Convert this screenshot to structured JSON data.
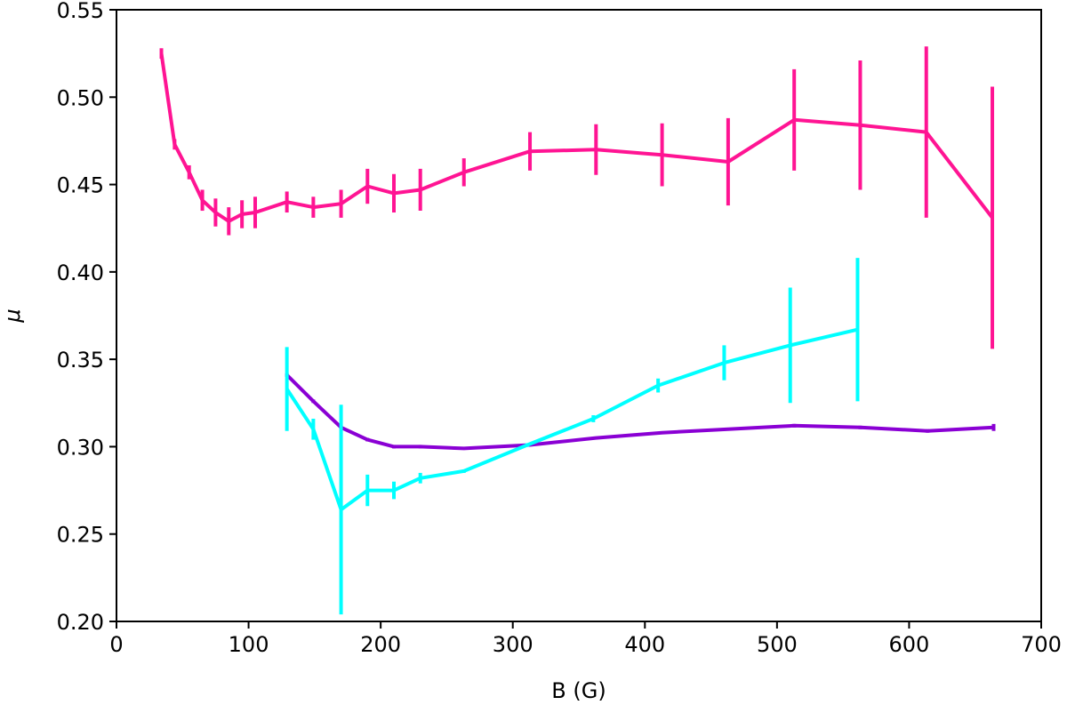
{
  "chart_data": {
    "type": "line",
    "title": "",
    "xlabel": "B (G)",
    "ylabel": "μ",
    "xlim": [
      0,
      700
    ],
    "ylim": [
      0.2,
      0.55
    ],
    "xticks": [
      0,
      100,
      200,
      300,
      400,
      500,
      600,
      700
    ],
    "xtick_labels": [
      "0",
      "100",
      "200",
      "300",
      "400",
      "500",
      "600",
      "700"
    ],
    "yticks": [
      0.2,
      0.25,
      0.3,
      0.35,
      0.4,
      0.45,
      0.5,
      0.55
    ],
    "ytick_labels": [
      "0.20",
      "0.25",
      "0.30",
      "0.35",
      "0.40",
      "0.45",
      "0.50",
      "0.55"
    ],
    "grid": false,
    "legend": null,
    "series": [
      {
        "name": "magenta",
        "color": "#ff1493",
        "x": [
          34,
          44,
          55,
          65,
          75,
          85,
          95,
          105,
          129,
          149,
          170,
          190,
          210,
          230,
          263,
          313,
          363,
          413,
          463,
          513,
          563,
          613,
          663
        ],
        "y": [
          0.525,
          0.473,
          0.457,
          0.441,
          0.434,
          0.429,
          0.433,
          0.434,
          0.44,
          0.437,
          0.439,
          0.449,
          0.445,
          0.447,
          0.457,
          0.469,
          0.47,
          0.467,
          0.463,
          0.487,
          0.484,
          0.48,
          0.431
        ],
        "err": [
          0.003,
          0.003,
          0.004,
          0.006,
          0.008,
          0.008,
          0.008,
          0.009,
          0.006,
          0.006,
          0.008,
          0.01,
          0.011,
          0.012,
          0.008,
          0.011,
          0.0145,
          0.018,
          0.025,
          0.029,
          0.037,
          0.049,
          0.075
        ]
      },
      {
        "name": "purple",
        "color": "#8a00d4",
        "x": [
          129,
          149,
          170,
          190,
          210,
          230,
          263,
          313,
          363,
          413,
          463,
          513,
          563,
          614,
          664
        ],
        "y": [
          0.341,
          0.326,
          0.311,
          0.304,
          0.3,
          0.3,
          0.299,
          0.301,
          0.305,
          0.308,
          0.31,
          0.312,
          0.311,
          0.309,
          0.311
        ],
        "err": [
          0.001,
          0.001,
          0.001,
          0.001,
          0.001,
          0.001,
          0.0005,
          0.0005,
          0.0005,
          0.0005,
          0.0005,
          0.001,
          0.001,
          0.001,
          0.002
        ]
      },
      {
        "name": "cyan",
        "color": "#00ffff",
        "x": [
          129,
          149,
          170,
          190,
          210,
          230,
          263,
          311,
          361,
          410,
          460,
          510,
          561
        ],
        "y": [
          0.333,
          0.31,
          0.264,
          0.275,
          0.275,
          0.282,
          0.286,
          0.301,
          0.316,
          0.335,
          0.348,
          0.358,
          0.367
        ],
        "err": [
          0.024,
          0.006,
          0.06,
          0.009,
          0.005,
          0.003,
          0.001,
          0.001,
          0.002,
          0.004,
          0.01,
          0.033,
          0.041
        ]
      }
    ]
  }
}
